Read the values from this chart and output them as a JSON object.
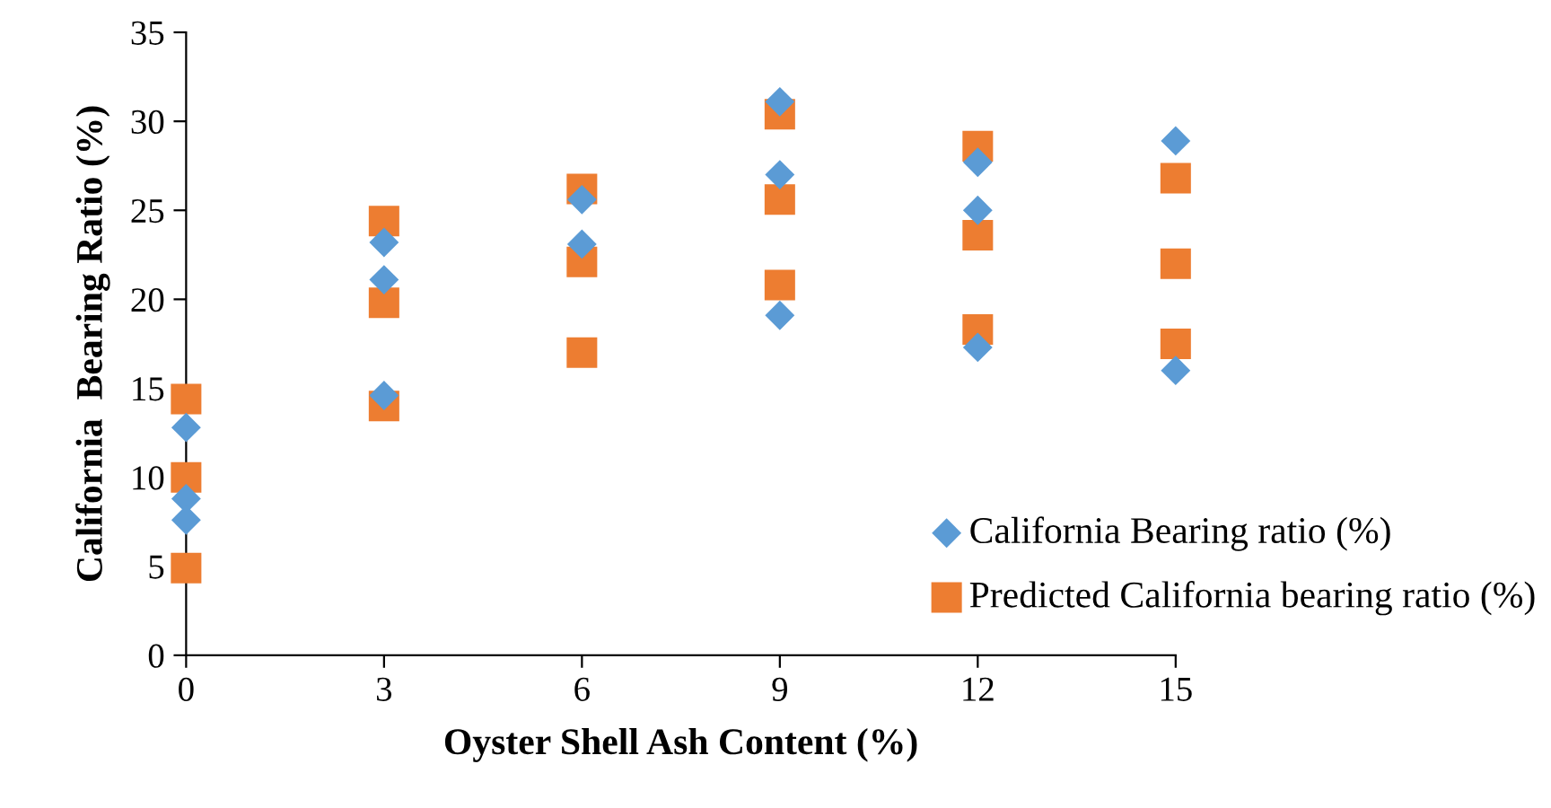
{
  "chart_data": {
    "type": "scatter",
    "xlabel": "Oyster Shell Ash Content (%)",
    "ylabel": "California  Bearing Ratio (%)",
    "xlim": [
      0,
      15
    ],
    "xticks": [
      0,
      3,
      6,
      9,
      12,
      15
    ],
    "ylim": [
      0,
      35
    ],
    "yticks": [
      0,
      5,
      10,
      15,
      20,
      25,
      30,
      35
    ],
    "grid": false,
    "legend": "bottom right",
    "series": [
      {
        "name": "California Bearing ratio (%)",
        "color": "#5b9bd5",
        "marker": "diamond",
        "x": [
          0,
          0,
          0,
          3,
          3,
          3,
          6,
          6,
          9,
          9,
          9,
          12,
          12,
          12,
          15,
          15
        ],
        "values": [
          12.8,
          8.8,
          7.6,
          23.2,
          21.1,
          14.6,
          25.6,
          23.1,
          31.1,
          27.0,
          19.1,
          27.7,
          25.0,
          17.3,
          28.9,
          16.0
        ]
      },
      {
        "name": "Predicted California bearing ratio (%)",
        "color": "#ed7d31",
        "marker": "square",
        "x": [
          0,
          0,
          0,
          3,
          3,
          3,
          6,
          6,
          6,
          9,
          9,
          9,
          12,
          12,
          12,
          15,
          15,
          15
        ],
        "values": [
          14.4,
          10.0,
          4.9,
          24.4,
          19.8,
          14.0,
          26.2,
          22.1,
          17.0,
          30.4,
          25.6,
          20.8,
          28.6,
          23.6,
          18.3,
          26.8,
          22.0,
          17.5
        ]
      }
    ]
  }
}
